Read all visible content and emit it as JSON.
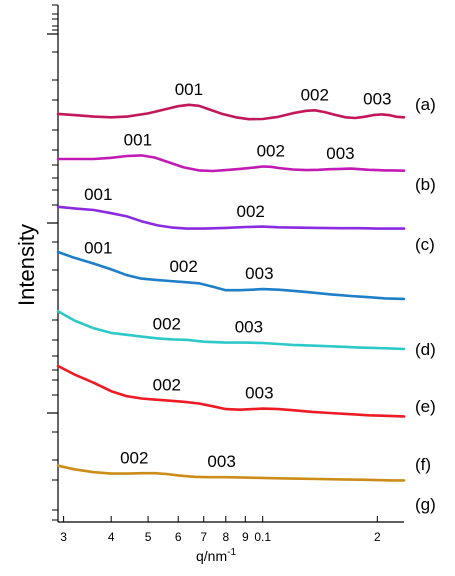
{
  "chart_data": {
    "type": "line",
    "ylabel": "Intensity",
    "xlabel": "q/nm",
    "xlabel_superscript": "-1",
    "xscale": "log",
    "yscale": "log",
    "xlim": [
      0.29,
      0.24
    ],
    "x_ticks": [
      {
        "value": 0.3,
        "label": "3"
      },
      {
        "value": 0.4,
        "label": "4"
      },
      {
        "value": 0.5,
        "label": "5"
      },
      {
        "value": 0.6,
        "label": "6"
      },
      {
        "value": 0.7,
        "label": "7"
      },
      {
        "value": 0.8,
        "label": "8"
      },
      {
        "value": 0.9,
        "label": "9"
      },
      {
        "value": 1.0,
        "label": "0.1"
      },
      {
        "value": 2.0,
        "label": "2"
      }
    ],
    "series": [
      {
        "name": "(a)",
        "color": "#c2185b",
        "x": [
          0.29,
          0.32,
          0.36,
          0.4,
          0.44,
          0.5,
          0.55,
          0.6,
          0.64,
          0.68,
          0.72,
          0.78,
          0.85,
          0.92,
          1.0,
          1.1,
          1.2,
          1.3,
          1.37,
          1.45,
          1.55,
          1.65,
          1.75,
          1.85,
          1.95,
          2.05,
          2.15,
          2.25,
          2.35
        ],
        "y": [
          0.42,
          0.37,
          0.31,
          0.28,
          0.31,
          0.44,
          0.6,
          0.74,
          0.8,
          0.76,
          0.62,
          0.43,
          0.28,
          0.2,
          0.21,
          0.3,
          0.45,
          0.55,
          0.57,
          0.5,
          0.38,
          0.28,
          0.25,
          0.3,
          0.37,
          0.4,
          0.37,
          0.3,
          0.28
        ]
      },
      {
        "name": "(b)",
        "color": "#c21ab4",
        "x": [
          0.29,
          0.32,
          0.36,
          0.4,
          0.44,
          0.48,
          0.52,
          0.57,
          0.62,
          0.68,
          0.74,
          0.8,
          0.87,
          0.94,
          1.0,
          1.05,
          1.1,
          1.2,
          1.3,
          1.4,
          1.5,
          1.6,
          1.7,
          1.8,
          1.9,
          2.0,
          2.1,
          2.2,
          2.35
        ],
        "y": [
          0.7,
          0.7,
          0.7,
          0.74,
          0.8,
          0.82,
          0.75,
          0.58,
          0.42,
          0.32,
          0.3,
          0.33,
          0.37,
          0.41,
          0.45,
          0.44,
          0.4,
          0.35,
          0.33,
          0.34,
          0.36,
          0.37,
          0.38,
          0.36,
          0.34,
          0.33,
          0.32,
          0.32,
          0.31
        ]
      },
      {
        "name": "(c)",
        "color": "#8a2be2",
        "x": [
          0.29,
          0.32,
          0.36,
          0.4,
          0.44,
          0.48,
          0.53,
          0.58,
          0.63,
          0.7,
          0.8,
          0.9,
          1.0,
          1.1,
          1.2,
          1.4,
          1.6,
          1.8,
          2.0,
          2.2,
          2.35
        ],
        "y": [
          1.1,
          1.05,
          1.0,
          0.9,
          0.8,
          0.65,
          0.52,
          0.45,
          0.42,
          0.42,
          0.44,
          0.47,
          0.48,
          0.46,
          0.45,
          0.44,
          0.43,
          0.43,
          0.42,
          0.42,
          0.42
        ]
      },
      {
        "name": "(d)",
        "color": "#1e7ec8",
        "x": [
          0.29,
          0.32,
          0.36,
          0.4,
          0.44,
          0.48,
          0.52,
          0.57,
          0.62,
          0.68,
          0.74,
          0.8,
          0.87,
          0.94,
          1.0,
          1.1,
          1.2,
          1.35,
          1.5,
          1.7,
          1.9,
          2.1,
          2.35
        ],
        "y": [
          0.88,
          0.78,
          0.68,
          0.58,
          0.48,
          0.42,
          0.4,
          0.38,
          0.36,
          0.34,
          0.28,
          0.22,
          0.22,
          0.23,
          0.24,
          0.23,
          0.21,
          0.18,
          0.15,
          0.12,
          0.1,
          0.08,
          0.07
        ]
      },
      {
        "name": "(e)",
        "color": "#2ec8c8",
        "x": [
          0.29,
          0.32,
          0.36,
          0.4,
          0.44,
          0.48,
          0.53,
          0.58,
          0.63,
          0.7,
          0.8,
          0.9,
          1.0,
          1.1,
          1.2,
          1.4,
          1.6,
          1.8,
          2.0,
          2.2,
          2.35
        ],
        "y": [
          0.95,
          0.75,
          0.58,
          0.48,
          0.44,
          0.4,
          0.36,
          0.34,
          0.33,
          0.29,
          0.27,
          0.27,
          0.26,
          0.24,
          0.22,
          0.2,
          0.18,
          0.16,
          0.15,
          0.14,
          0.13
        ]
      },
      {
        "name": "(f)",
        "color": "#ee1b24",
        "x": [
          0.29,
          0.32,
          0.36,
          0.4,
          0.44,
          0.48,
          0.52,
          0.57,
          0.62,
          0.68,
          0.74,
          0.8,
          0.87,
          0.94,
          1.0,
          1.1,
          1.2,
          1.35,
          1.5,
          1.7,
          1.9,
          2.1,
          2.35
        ],
        "y": [
          1.0,
          0.85,
          0.7,
          0.55,
          0.46,
          0.42,
          0.4,
          0.38,
          0.36,
          0.33,
          0.28,
          0.23,
          0.22,
          0.23,
          0.24,
          0.23,
          0.21,
          0.18,
          0.16,
          0.14,
          0.12,
          0.11,
          0.1
        ]
      },
      {
        "name": "(g)",
        "color": "#cc8c1a",
        "x": [
          0.29,
          0.32,
          0.36,
          0.4,
          0.44,
          0.48,
          0.52,
          0.56,
          0.6,
          0.66,
          0.72,
          0.8,
          0.9,
          1.0,
          1.1,
          1.2,
          1.4,
          1.6,
          1.8,
          2.0,
          2.2,
          2.35
        ],
        "y": [
          0.62,
          0.52,
          0.44,
          0.4,
          0.4,
          0.41,
          0.41,
          0.39,
          0.35,
          0.31,
          0.3,
          0.3,
          0.29,
          0.28,
          0.27,
          0.26,
          0.25,
          0.24,
          0.23,
          0.22,
          0.21,
          0.21
        ]
      }
    ],
    "annotations": [
      {
        "series": 0,
        "text": "001",
        "x": 0.64,
        "y": 0.8
      },
      {
        "series": 0,
        "text": "002",
        "x": 1.37,
        "y": 0.57
      },
      {
        "series": 0,
        "text": "003",
        "x": 2.0,
        "y": 0.4
      },
      {
        "series": 1,
        "text": "001",
        "x": 0.47,
        "y": 0.82
      },
      {
        "series": 1,
        "text": "002",
        "x": 1.05,
        "y": 0.45
      },
      {
        "series": 1,
        "text": "003",
        "x": 1.6,
        "y": 0.37
      },
      {
        "series": 2,
        "text": "001",
        "x": 0.37,
        "y": 1.0
      },
      {
        "series": 2,
        "text": "002",
        "x": 0.93,
        "y": 0.47
      },
      {
        "series": 3,
        "text": "001",
        "x": 0.37,
        "y": 0.68
      },
      {
        "series": 3,
        "text": "002",
        "x": 0.62,
        "y": 0.36
      },
      {
        "series": 3,
        "text": "003",
        "x": 0.98,
        "y": 0.24
      },
      {
        "series": 4,
        "text": "002",
        "x": 0.56,
        "y": 0.34
      },
      {
        "series": 4,
        "text": "003",
        "x": 0.92,
        "y": 0.27
      },
      {
        "series": 5,
        "text": "002",
        "x": 0.56,
        "y": 0.38
      },
      {
        "series": 5,
        "text": "003",
        "x": 0.98,
        "y": 0.24
      },
      {
        "series": 6,
        "text": "002",
        "x": 0.46,
        "y": 0.4
      },
      {
        "series": 6,
        "text": "003",
        "x": 0.78,
        "y": 0.3
      }
    ]
  }
}
